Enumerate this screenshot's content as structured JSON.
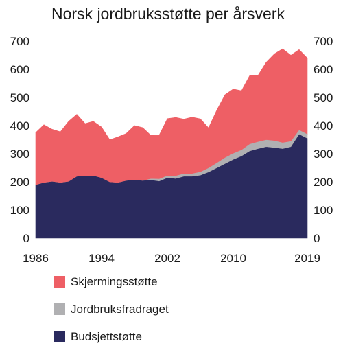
{
  "chart_data": {
    "type": "area",
    "stacked": true,
    "title": "Norsk jordbruksstøtte per årsverk",
    "xlabel": "",
    "ylabel": "",
    "x": [
      1986,
      1987,
      1988,
      1989,
      1990,
      1991,
      1992,
      1993,
      1994,
      1995,
      1996,
      1997,
      1998,
      1999,
      2000,
      2001,
      2002,
      2003,
      2004,
      2005,
      2006,
      2007,
      2008,
      2009,
      2010,
      2011,
      2012,
      2013,
      2014,
      2015,
      2016,
      2017,
      2018,
      2019
    ],
    "x_ticks": [
      1986,
      1994,
      2002,
      2010,
      2019
    ],
    "ylim": [
      0,
      700
    ],
    "y_ticks": [
      0,
      100,
      200,
      300,
      400,
      500,
      600,
      700
    ],
    "y_axis_both_sides": true,
    "grid": false,
    "legend_position": "bottom-left",
    "series": [
      {
        "name": "Budsjettstøtte",
        "color": "#2a2a5e",
        "values": [
          190,
          198,
          202,
          198,
          202,
          220,
          222,
          223,
          215,
          200,
          198,
          205,
          208,
          205,
          207,
          203,
          215,
          212,
          220,
          220,
          224,
          235,
          250,
          265,
          280,
          292,
          310,
          318,
          325,
          322,
          318,
          325,
          370,
          355
        ]
      },
      {
        "name": "Jordbruksfradraget",
        "color": "#b0b0b2",
        "values": [
          0,
          0,
          0,
          0,
          0,
          0,
          0,
          0,
          0,
          0,
          0,
          0,
          0,
          0,
          5,
          8,
          8,
          10,
          10,
          10,
          12,
          15,
          18,
          22,
          22,
          22,
          25,
          25,
          25,
          25,
          22,
          20,
          15,
          15
        ]
      },
      {
        "name": "Skjermingsstøtte",
        "color": "#ee5f65",
        "values": [
          185,
          205,
          185,
          180,
          213,
          220,
          185,
          192,
          180,
          150,
          162,
          167,
          192,
          188,
          153,
          155,
          202,
          207,
          193,
          200,
          188,
          142,
          187,
          223,
          228,
          210,
          243,
          235,
          275,
          308,
          333,
          305,
          285,
          270
        ]
      }
    ],
    "legend_order": [
      "Skjermingsstøtte",
      "Jordbruksfradraget",
      "Budsjettstøtte"
    ]
  }
}
